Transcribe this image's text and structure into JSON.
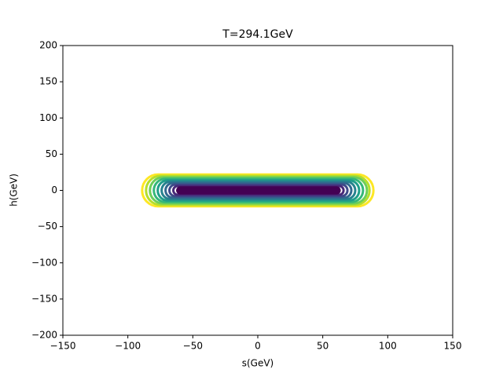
{
  "chart_data": {
    "type": "contour",
    "title": "T=294.1GeV",
    "xlabel": "s(GeV)",
    "ylabel": "h(GeV)",
    "xlim": [
      -150,
      150
    ],
    "ylim": [
      -200,
      200
    ],
    "xticks": [
      {
        "value": -150,
        "label": "−150"
      },
      {
        "value": -100,
        "label": "−100"
      },
      {
        "value": -50,
        "label": "−50"
      },
      0,
      50,
      100,
      150
    ],
    "yticks": [
      {
        "value": -200,
        "label": "−200"
      },
      {
        "value": -150,
        "label": "−150"
      },
      {
        "value": -100,
        "label": "−100"
      },
      {
        "value": -50,
        "label": "−50"
      },
      0,
      50,
      100,
      150,
      200
    ],
    "contours": [
      {
        "color": "#fde725",
        "s": [
          -89,
          89
        ],
        "h": [
          -22,
          22
        ]
      },
      {
        "color": "#b5de2b",
        "s": [
          -86,
          86
        ],
        "h": [
          -20,
          20
        ]
      },
      {
        "color": "#6ece58",
        "s": [
          -83,
          84
        ],
        "h": [
          -18,
          18
        ]
      },
      {
        "color": "#35b779",
        "s": [
          -80,
          81
        ],
        "h": [
          -16,
          16
        ]
      },
      {
        "color": "#1f9e89",
        "s": [
          -77,
          78
        ],
        "h": [
          -14,
          14
        ]
      },
      {
        "color": "#26828e",
        "s": [
          -74,
          75
        ],
        "h": [
          -12,
          12
        ]
      },
      {
        "color": "#31688e",
        "s": [
          -71,
          72
        ],
        "h": [
          -10,
          10
        ]
      },
      {
        "color": "#3e4989",
        "s": [
          -68,
          69
        ],
        "h": [
          -8,
          8
        ]
      },
      {
        "color": "#482878",
        "s": [
          -65,
          66
        ],
        "h": [
          -6,
          6
        ]
      },
      {
        "color": "#440154",
        "s": [
          -62,
          63
        ],
        "h": [
          -4,
          4
        ]
      }
    ]
  }
}
